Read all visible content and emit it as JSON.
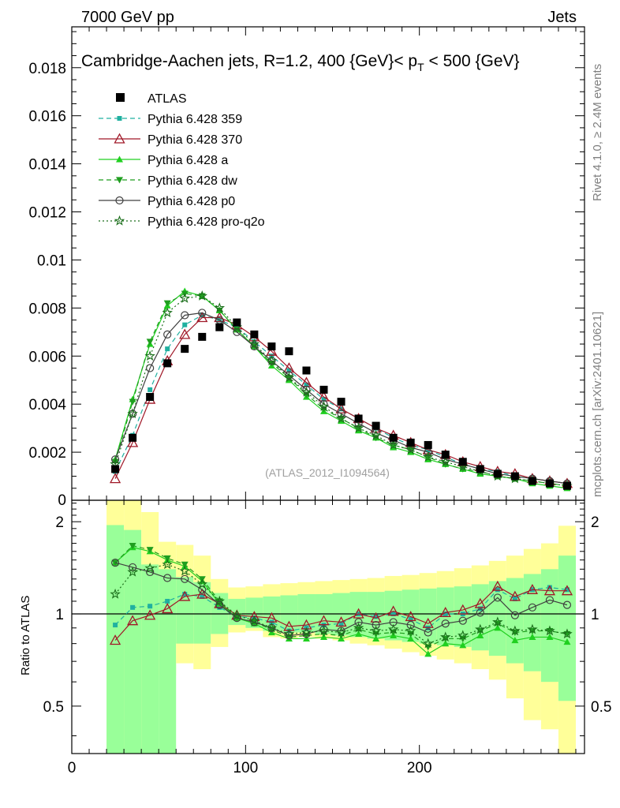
{
  "header": {
    "left": "7000 GeV pp",
    "right": "Jets"
  },
  "side_labels": {
    "rivet": "Rivet 4.1.0, ≥ 2.4M events",
    "mcplots": "mcplots.cern.ch [arXiv:2401.10621]"
  },
  "chart_data": {
    "type": "line",
    "title": "Cambridge-Aachen jets, R=1.2, 400 {GeV}< p_T < 500 {GeV}",
    "title_main": "Cambridge-Aachen jets, R=1.2, 400 {GeV}< p",
    "title_sub": "T",
    "title_tail": " < 500 {GeV}",
    "analysis_tag": "(ATLAS_2012_I1094564)",
    "xlim": [
      0,
      295
    ],
    "ylim": [
      0,
      0.0197
    ],
    "ratio_ylim": [
      0.35,
      2.35
    ],
    "ratio_ylabel": "Ratio to ATLAS",
    "xticks": [
      0,
      100,
      200
    ],
    "xtick_labels": [
      "0",
      "100",
      "200"
    ],
    "yticks": [
      0.002,
      0.004,
      0.006,
      0.008,
      0.01,
      0.012,
      0.014,
      0.016,
      0.018
    ],
    "ytick_labels": [
      "0.002",
      "0.004",
      "0.006",
      "0.008",
      "0.01",
      "0.012",
      "0.014",
      "0.016",
      "0.018"
    ],
    "ratio_ticks": [
      0.5,
      1,
      2
    ],
    "ratio_tick_labels": [
      "0.5",
      "1",
      "2"
    ],
    "x": [
      25,
      35,
      45,
      55,
      65,
      75,
      85,
      95,
      105,
      115,
      125,
      135,
      145,
      155,
      165,
      175,
      185,
      195,
      205,
      215,
      225,
      235,
      245,
      255,
      265,
      275,
      285
    ],
    "data": {
      "name": "ATLAS",
      "values": [
        0.0013,
        0.0026,
        0.0043,
        0.0057,
        0.0063,
        0.0068,
        0.0072,
        0.0074,
        0.0069,
        0.0064,
        0.0062,
        0.0054,
        0.0046,
        0.0041,
        0.0034,
        0.0031,
        0.0026,
        0.0024,
        0.0023,
        0.0019,
        0.0016,
        0.0013,
        0.0011,
        0.001,
        0.0008,
        0.0007,
        0.0006
      ]
    },
    "band_yellow": {
      "lo": [
        0.1,
        0.1,
        0.1,
        0.63,
        0.69,
        0.66,
        0.78,
        0.87,
        0.88,
        0.84,
        0.83,
        0.84,
        0.83,
        0.82,
        0.8,
        0.79,
        0.77,
        0.75,
        0.73,
        0.71,
        0.69,
        0.66,
        0.61,
        0.53,
        0.45,
        0.42,
        0.35
      ],
      "hi": [
        2.5,
        2.5,
        2.15,
        1.72,
        1.68,
        1.55,
        1.3,
        1.22,
        1.23,
        1.25,
        1.26,
        1.27,
        1.28,
        1.29,
        1.3,
        1.31,
        1.33,
        1.34,
        1.36,
        1.38,
        1.41,
        1.44,
        1.49,
        1.55,
        1.63,
        1.7,
        1.94
      ]
    },
    "band_green": {
      "lo": [
        0.1,
        0.1,
        0.1,
        0.1,
        0.8,
        0.8,
        0.86,
        0.92,
        0.9,
        0.88,
        0.87,
        0.87,
        0.86,
        0.85,
        0.84,
        0.83,
        0.82,
        0.81,
        0.8,
        0.79,
        0.78,
        0.76,
        0.73,
        0.69,
        0.65,
        0.6,
        0.52
      ],
      "hi": [
        1.95,
        1.88,
        1.45,
        1.4,
        1.32,
        1.27,
        1.17,
        1.12,
        1.13,
        1.14,
        1.15,
        1.16,
        1.16,
        1.17,
        1.18,
        1.18,
        1.19,
        1.2,
        1.21,
        1.22,
        1.23,
        1.25,
        1.28,
        1.31,
        1.35,
        1.4,
        1.55
      ]
    },
    "series": [
      {
        "name": "Pythia 6.428 359",
        "color": "#20b0a0",
        "dash": "6,4",
        "marker": "square",
        "values": [
          0.0012,
          0.0027,
          0.0046,
          0.0063,
          0.0073,
          0.0077,
          0.0075,
          0.0072,
          0.0066,
          0.006,
          0.0054,
          0.0048,
          0.0042,
          0.0038,
          0.0034,
          0.003,
          0.0026,
          0.0023,
          0.0021,
          0.0018,
          0.0015,
          0.0013,
          0.0012,
          0.001,
          0.0009,
          0.0008,
          0.0007
        ],
        "ratio": [
          0.92,
          1.05,
          1.06,
          1.1,
          1.16,
          1.14,
          1.05,
          0.98,
          0.97,
          0.94,
          0.88,
          0.9,
          0.92,
          0.93,
          1.0,
          0.98,
          1.0,
          0.96,
          0.9,
          1.0,
          1.0,
          1.04,
          1.2,
          1.12,
          1.2,
          1.22,
          1.2
        ]
      },
      {
        "name": "Pythia 6.428 370",
        "color": "#a01828",
        "dash": "",
        "marker": "triangle-open",
        "values": [
          0.0009,
          0.0024,
          0.0042,
          0.0058,
          0.0069,
          0.0076,
          0.0076,
          0.0073,
          0.0068,
          0.0062,
          0.0055,
          0.0049,
          0.0043,
          0.0038,
          0.0034,
          0.003,
          0.0027,
          0.0024,
          0.0021,
          0.0019,
          0.0016,
          0.0014,
          0.0012,
          0.0011,
          0.0009,
          0.0008,
          0.0007
        ],
        "ratio": [
          0.82,
          0.95,
          0.99,
          1.04,
          1.14,
          1.16,
          1.08,
          0.99,
          0.98,
          0.97,
          0.91,
          0.92,
          0.95,
          0.94,
          1.0,
          0.97,
          1.02,
          0.98,
          0.93,
          1.01,
          1.03,
          1.08,
          1.23,
          1.14,
          1.2,
          1.19,
          1.19
        ]
      },
      {
        "name": "Pythia 6.428 a",
        "color": "#20d020",
        "dash": "",
        "marker": "triangle",
        "values": [
          0.0017,
          0.0042,
          0.0065,
          0.0081,
          0.0087,
          0.0085,
          0.0079,
          0.0071,
          0.0064,
          0.0056,
          0.005,
          0.0043,
          0.0037,
          0.0033,
          0.0029,
          0.0026,
          0.0022,
          0.002,
          0.0017,
          0.0015,
          0.0013,
          0.0011,
          0.001,
          0.0009,
          0.0007,
          0.0006,
          0.0005
        ],
        "ratio": [
          1.47,
          1.65,
          1.6,
          1.5,
          1.43,
          1.28,
          1.08,
          0.97,
          0.93,
          0.87,
          0.83,
          0.83,
          0.84,
          0.83,
          0.86,
          0.83,
          0.85,
          0.83,
          0.74,
          0.8,
          0.79,
          0.85,
          0.9,
          0.82,
          0.84,
          0.84,
          0.81
        ]
      },
      {
        "name": "Pythia 6.428 dw",
        "color": "#1f9e1f",
        "dash": "6,4",
        "marker": "triangle-down",
        "values": [
          0.0016,
          0.0041,
          0.0066,
          0.0082,
          0.0086,
          0.0085,
          0.0079,
          0.0071,
          0.0064,
          0.0057,
          0.0051,
          0.0044,
          0.0038,
          0.0034,
          0.003,
          0.0026,
          0.0023,
          0.0021,
          0.0018,
          0.0015,
          0.0013,
          0.0012,
          0.001,
          0.0009,
          0.0008,
          0.0007,
          0.0006
        ],
        "ratio": [
          1.47,
          1.67,
          1.62,
          1.52,
          1.45,
          1.3,
          1.1,
          0.97,
          0.94,
          0.89,
          0.84,
          0.85,
          0.86,
          0.85,
          0.89,
          0.86,
          0.87,
          0.86,
          0.78,
          0.83,
          0.83,
          0.88,
          0.93,
          0.87,
          0.88,
          0.88,
          0.86
        ]
      },
      {
        "name": "Pythia 6.428 p0",
        "color": "#404040",
        "dash": "",
        "marker": "circle-open",
        "values": [
          0.0017,
          0.0036,
          0.0055,
          0.0069,
          0.0077,
          0.0078,
          0.0075,
          0.007,
          0.0064,
          0.0058,
          0.0052,
          0.0046,
          0.004,
          0.0036,
          0.0032,
          0.0028,
          0.0025,
          0.0022,
          0.002,
          0.0017,
          0.0015,
          0.0013,
          0.0011,
          0.001,
          0.0009,
          0.0008,
          0.0007
        ],
        "ratio": [
          1.47,
          1.42,
          1.37,
          1.31,
          1.3,
          1.2,
          1.07,
          0.97,
          0.94,
          0.9,
          0.85,
          0.86,
          0.89,
          0.88,
          0.94,
          0.92,
          0.94,
          0.92,
          0.87,
          0.93,
          0.95,
          1.01,
          1.13,
          0.99,
          1.05,
          1.11,
          1.07
        ]
      },
      {
        "name": "Pythia 6.428 pro-q2o",
        "color": "#1a6e1a",
        "dash": "2,3",
        "marker": "star",
        "values": [
          0.0015,
          0.0036,
          0.006,
          0.0078,
          0.0084,
          0.0085,
          0.008,
          0.0072,
          0.0065,
          0.0058,
          0.0051,
          0.0045,
          0.0039,
          0.0034,
          0.003,
          0.0027,
          0.0023,
          0.0021,
          0.0018,
          0.0016,
          0.0014,
          0.0012,
          0.001,
          0.0009,
          0.0008,
          0.0007,
          0.0006
        ],
        "ratio": [
          1.16,
          1.37,
          1.41,
          1.45,
          1.38,
          1.25,
          1.1,
          0.99,
          0.95,
          0.9,
          0.86,
          0.87,
          0.88,
          0.87,
          0.9,
          0.88,
          0.89,
          0.88,
          0.8,
          0.84,
          0.85,
          0.89,
          0.94,
          0.88,
          0.89,
          0.88,
          0.86
        ]
      }
    ]
  }
}
